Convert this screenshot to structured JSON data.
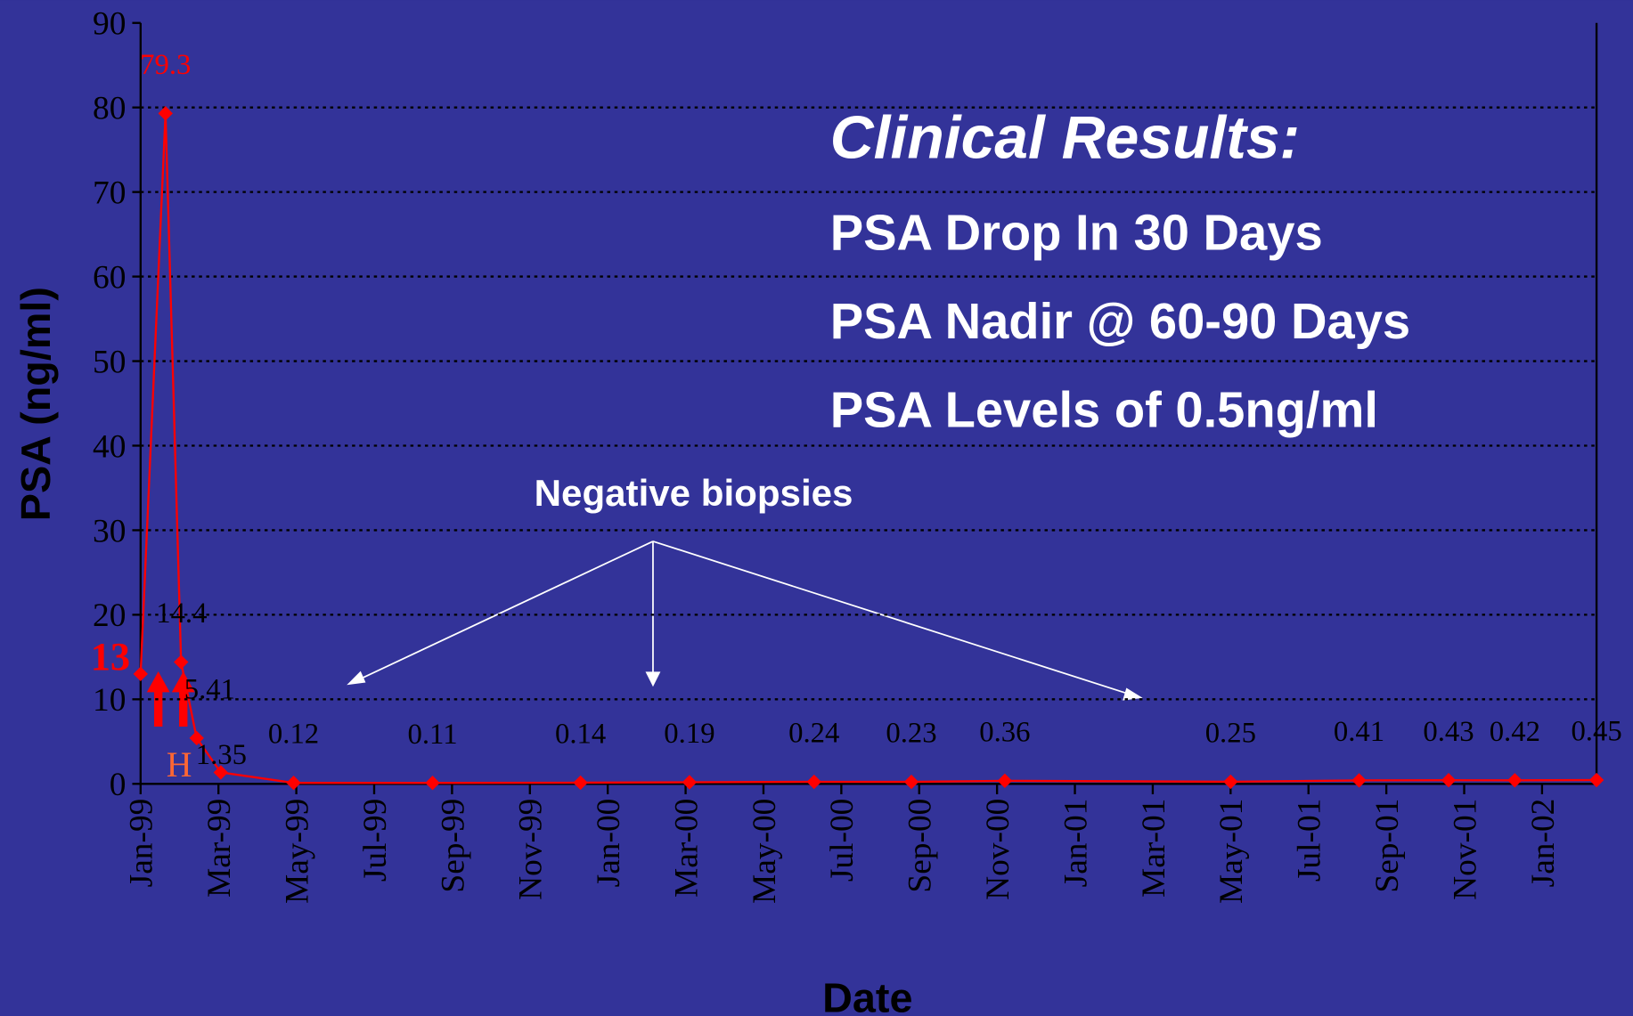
{
  "chart_data": {
    "type": "line",
    "x_label": "Date",
    "y_label": "PSA (ng/ml)",
    "x": [
      0,
      0.64,
      1.04,
      1.44,
      2.06,
      3.93,
      7.5,
      11.3,
      14.1,
      17.3,
      19.8,
      22.2,
      28.0,
      31.3,
      33.6,
      35.3,
      37.4
    ],
    "series": [
      {
        "name": "PSA",
        "color": "#ff0000",
        "values": [
          13,
          79.3,
          14.4,
          5.41,
          1.35,
          0.12,
          0.11,
          0.14,
          0.19,
          0.24,
          0.23,
          0.36,
          0.25,
          0.41,
          0.43,
          0.42,
          0.45
        ]
      }
    ],
    "xlim": [
      0,
      37.4
    ],
    "xticks": [
      {
        "value": 0,
        "label": "Jan-99"
      },
      {
        "value": 2,
        "label": "Mar-99"
      },
      {
        "value": 4,
        "label": "May-99"
      },
      {
        "value": 6,
        "label": "Jul-99"
      },
      {
        "value": 8,
        "label": "Sep-99"
      },
      {
        "value": 10,
        "label": "Nov-99"
      },
      {
        "value": 12,
        "label": "Jan-00"
      },
      {
        "value": 14,
        "label": "Mar-00"
      },
      {
        "value": 16,
        "label": "May-00"
      },
      {
        "value": 18,
        "label": "Jul-00"
      },
      {
        "value": 20,
        "label": "Sep-00"
      },
      {
        "value": 22,
        "label": "Nov-00"
      },
      {
        "value": 24,
        "label": "Jan-01"
      },
      {
        "value": 26,
        "label": "Mar-01"
      },
      {
        "value": 28,
        "label": "May-01"
      },
      {
        "value": 30,
        "label": "Jul-01"
      },
      {
        "value": 32,
        "label": "Sep-01"
      },
      {
        "value": 34,
        "label": "Nov-01"
      },
      {
        "value": 36,
        "label": "Jan-02"
      }
    ],
    "ylim": [
      0,
      90
    ],
    "yticks": [
      0,
      10,
      20,
      30,
      40,
      50,
      60,
      70,
      80,
      90
    ],
    "grid": true,
    "annotations": [
      "Clinical Results:",
      "PSA Drop In 30 Days",
      "PSA Nadir @ 60-90 Days",
      "PSA Levels of 0.5ng/ml",
      "Negative biopsies",
      "H"
    ]
  }
}
